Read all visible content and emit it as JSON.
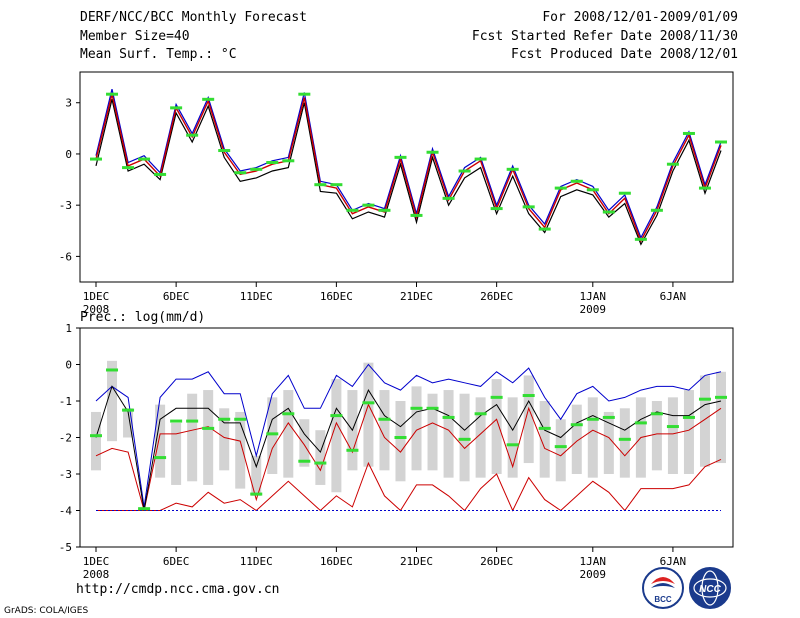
{
  "header": {
    "left": [
      "DERF/NCC/BCC Monthly Forecast",
      "Member Size=40",
      "Mean Surf. Temp.: °C"
    ],
    "right": [
      "For 2008/12/01-2009/01/09",
      "Fcst Started Refer Date 2008/11/30",
      "Fcst Produced Date 2008/12/01"
    ]
  },
  "precip_title": "Prec.: log(mm/d)",
  "footer": {
    "url": "http://cmdp.ncc.cma.gov.cn",
    "credit": "GrADS: COLA/IGES"
  },
  "logos": {
    "bcc": "BCC",
    "ncc": "NCC"
  },
  "colors": {
    "ensemble_mean": "#000000",
    "max_line": "#0000cc",
    "pct_line": "#cc0000",
    "obs_marker": "#33dd33",
    "box": "#d3d3d3"
  },
  "chart_data": [
    {
      "type": "line",
      "title": "Mean Surf. Temp.: °C",
      "x_tick_labels": [
        [
          "1DEC",
          "2008"
        ],
        [
          "6DEC",
          ""
        ],
        [
          "11DEC",
          ""
        ],
        [
          "16DEC",
          ""
        ],
        [
          "21DEC",
          ""
        ],
        [
          "26DEC",
          ""
        ],
        [
          "1JAN",
          "2009"
        ],
        [
          "6JAN",
          ""
        ]
      ],
      "x_tick_days": [
        1,
        6,
        11,
        16,
        21,
        26,
        32,
        37
      ],
      "ylim": [
        -7.5,
        4.8
      ],
      "yticks": [
        3,
        0,
        -3,
        -6
      ],
      "ytick_labels": [
        "3",
        "0",
        "-3",
        "-6"
      ],
      "mean": [
        -0.3,
        3.5,
        -0.7,
        -0.3,
        -1.3,
        2.7,
        1.0,
        3.1,
        0.1,
        -1.2,
        -1.0,
        -0.6,
        -0.4,
        3.3,
        -1.8,
        -2.0,
        -3.5,
        -3.1,
        -3.4,
        -0.3,
        -3.7,
        0.1,
        -2.7,
        -1.0,
        -0.4,
        -3.2,
        -0.9,
        -3.2,
        -4.3,
        -2.1,
        -1.7,
        -2.1,
        -3.5,
        -2.6,
        -5.1,
        -3.3,
        -0.7,
        1.1,
        -2.0,
        0.5
      ],
      "upper": [
        -0.1,
        3.8,
        -0.5,
        -0.1,
        -1.1,
        2.9,
        1.2,
        3.3,
        0.3,
        -1.0,
        -0.8,
        -0.4,
        -0.2,
        3.6,
        -1.6,
        -1.8,
        -3.3,
        -2.9,
        -3.2,
        -0.1,
        -3.5,
        0.3,
        -2.5,
        -0.8,
        -0.2,
        -3.0,
        -0.7,
        -3.0,
        -4.1,
        -1.9,
        -1.5,
        -1.9,
        -3.3,
        -2.4,
        -4.9,
        -3.1,
        -0.5,
        1.3,
        -1.8,
        0.7
      ],
      "lower": [
        -0.7,
        3.2,
        -1.0,
        -0.6,
        -1.5,
        2.4,
        0.7,
        2.8,
        -0.2,
        -1.6,
        -1.4,
        -1.0,
        -0.8,
        3.0,
        -2.2,
        -2.3,
        -3.8,
        -3.4,
        -3.7,
        -0.6,
        -4.0,
        -0.2,
        -3.0,
        -1.4,
        -0.8,
        -3.5,
        -1.3,
        -3.5,
        -4.6,
        -2.5,
        -2.1,
        -2.4,
        -3.7,
        -2.9,
        -5.3,
        -3.6,
        -1.0,
        0.8,
        -2.3,
        0.2
      ],
      "obs": [
        -0.3,
        3.5,
        -0.8,
        -0.3,
        -1.2,
        2.7,
        1.1,
        3.2,
        0.2,
        -1.1,
        -0.9,
        -0.5,
        -0.4,
        3.5,
        -1.8,
        -1.8,
        -3.3,
        -3.0,
        -3.3,
        -0.2,
        -3.6,
        0.1,
        -2.6,
        -1.0,
        -0.3,
        -3.2,
        -0.9,
        -3.1,
        -4.4,
        -2.0,
        -1.6,
        -2.1,
        -3.4,
        -2.3,
        -5.0,
        -3.3,
        -0.6,
        1.2,
        -2.0,
        0.7
      ]
    },
    {
      "type": "line",
      "title": "Prec.: log(mm/d)",
      "x_tick_labels": [
        [
          "1DEC",
          "2008"
        ],
        [
          "6DEC",
          ""
        ],
        [
          "11DEC",
          ""
        ],
        [
          "16DEC",
          ""
        ],
        [
          "21DEC",
          ""
        ],
        [
          "26DEC",
          ""
        ],
        [
          "1JAN",
          "2009"
        ],
        [
          "6JAN",
          ""
        ]
      ],
      "x_tick_days": [
        1,
        6,
        11,
        16,
        21,
        26,
        32,
        37
      ],
      "ylim": [
        -5,
        1
      ],
      "yticks": [
        1,
        0,
        -1,
        -2,
        -3,
        -4,
        -5
      ],
      "ytick_labels": [
        "1",
        "0",
        "-1",
        "-2",
        "-3",
        "-4",
        "-5"
      ],
      "box_top": [
        -1.3,
        0.1,
        -1.2,
        -4.0,
        -1.1,
        -1.6,
        -0.8,
        -0.7,
        -1.2,
        -1.3,
        -2.5,
        -0.9,
        -0.7,
        -1.5,
        -1.8,
        -0.4,
        -0.7,
        0.05,
        -0.7,
        -1.0,
        -0.6,
        -0.8,
        -0.7,
        -0.8,
        -0.9,
        -0.4,
        -0.9,
        -0.3,
        -1.0,
        -1.5,
        -1.1,
        -0.9,
        -1.3,
        -1.2,
        -0.9,
        -1.0,
        -0.9,
        -0.7,
        -0.3,
        -0.2
      ],
      "box_bottom": [
        -2.9,
        -2.1,
        -2.0,
        -4.0,
        -3.1,
        -3.3,
        -3.2,
        -3.3,
        -2.9,
        -3.4,
        -3.6,
        -3.0,
        -3.1,
        -2.8,
        -3.3,
        -3.5,
        -2.9,
        -2.8,
        -2.9,
        -3.2,
        -2.9,
        -2.9,
        -3.1,
        -3.2,
        -3.1,
        -3.0,
        -3.1,
        -2.7,
        -3.1,
        -3.2,
        -3.0,
        -3.1,
        -3.0,
        -3.1,
        -3.1,
        -2.9,
        -3.0,
        -3.0,
        -2.8,
        -2.7
      ],
      "max": [
        -1.0,
        -0.6,
        -0.9,
        -3.9,
        -0.9,
        -0.4,
        -0.4,
        -0.2,
        -0.8,
        -0.8,
        -2.5,
        -0.8,
        -0.3,
        -1.2,
        -1.2,
        -0.3,
        -0.6,
        0.0,
        -0.5,
        -0.7,
        -0.3,
        -0.5,
        -0.4,
        -0.5,
        -0.6,
        -0.2,
        -0.5,
        -0.1,
        -0.9,
        -1.5,
        -0.8,
        -0.6,
        -1.0,
        -0.9,
        -0.7,
        -0.6,
        -0.6,
        -0.7,
        -0.3,
        -0.2
      ],
      "mean": [
        -2.0,
        -0.6,
        -1.3,
        -4.0,
        -1.5,
        -1.2,
        -1.2,
        -1.2,
        -1.6,
        -1.6,
        -2.8,
        -1.5,
        -1.2,
        -1.9,
        -2.4,
        -1.2,
        -1.8,
        -0.7,
        -1.4,
        -1.7,
        -1.3,
        -1.2,
        -1.4,
        -1.8,
        -1.4,
        -1.1,
        -1.8,
        -1.0,
        -1.8,
        -2.0,
        -1.6,
        -1.4,
        -1.6,
        -1.8,
        -1.5,
        -1.3,
        -1.4,
        -1.4,
        -1.1,
        -1.0
      ],
      "pct_high": [
        -2.5,
        -2.3,
        -2.4,
        -4.0,
        -1.9,
        -1.9,
        -1.8,
        -1.7,
        -2.0,
        -2.1,
        -3.7,
        -2.3,
        -1.6,
        -2.2,
        -2.9,
        -1.6,
        -2.4,
        -1.1,
        -2.0,
        -2.4,
        -1.8,
        -1.6,
        -1.8,
        -2.3,
        -1.9,
        -1.5,
        -2.8,
        -1.2,
        -2.3,
        -2.5,
        -2.1,
        -1.8,
        -2.0,
        -2.5,
        -2.0,
        -1.9,
        -1.9,
        -1.8,
        -1.5,
        -1.2
      ],
      "pct_low": [
        -4.0,
        -4.0,
        -4.0,
        -4.0,
        -4.0,
        -3.8,
        -3.9,
        -3.5,
        -3.8,
        -3.7,
        -4.0,
        -3.6,
        -3.2,
        -3.6,
        -4.0,
        -3.6,
        -3.9,
        -2.7,
        -3.6,
        -4.0,
        -3.3,
        -3.3,
        -3.6,
        -4.0,
        -3.4,
        -3.0,
        -4.0,
        -3.1,
        -3.7,
        -4.0,
        -3.6,
        -3.2,
        -3.5,
        -4.0,
        -3.4,
        -3.4,
        -3.4,
        -3.3,
        -2.8,
        -2.6
      ],
      "baseline": -4.0,
      "obs": [
        -1.95,
        -0.15,
        -1.25,
        -3.95,
        -2.55,
        -1.55,
        -1.55,
        -1.75,
        -1.5,
        -1.5,
        -3.55,
        -1.9,
        -1.35,
        -2.65,
        -2.7,
        -1.4,
        -2.35,
        -1.05,
        -1.5,
        -2.0,
        -1.2,
        -1.2,
        -1.45,
        -2.05,
        -1.35,
        -0.9,
        -2.2,
        -0.85,
        -1.75,
        -2.25,
        -1.65,
        -1.5,
        -1.45,
        -2.05,
        -1.6,
        -1.35,
        -1.7,
        -1.45,
        -0.95,
        -0.9
      ]
    }
  ]
}
